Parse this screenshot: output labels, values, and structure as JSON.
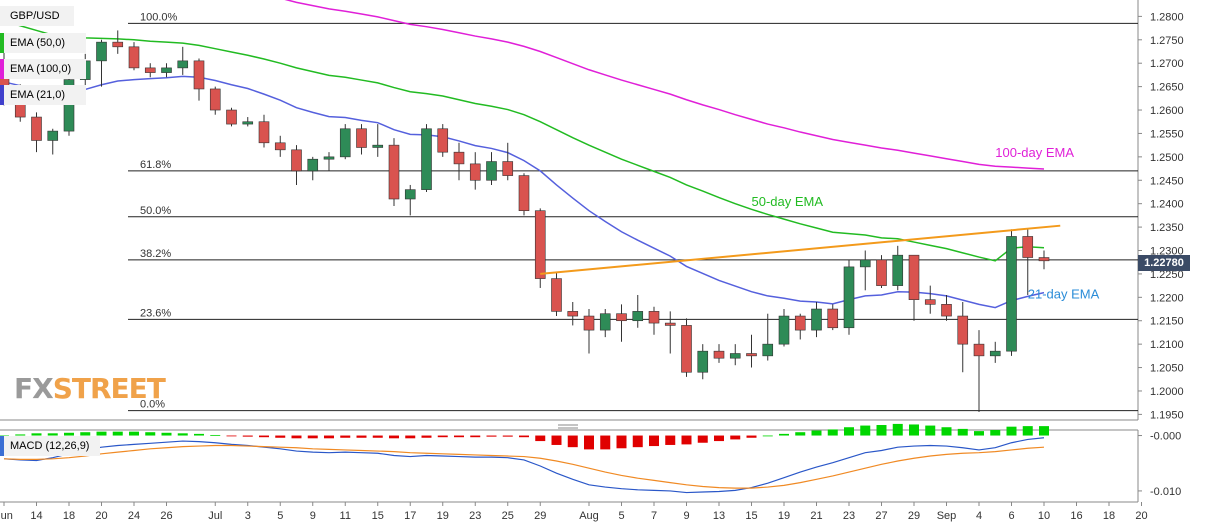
{
  "chart_data": {
    "type": "candlestick",
    "symbol": "GBP/USD",
    "current_price": "1.22780",
    "ylim": [
      1.1938,
      1.2835
    ],
    "y_ticks": [
      "1.2800",
      "1.2750",
      "1.2700",
      "1.2650",
      "1.2600",
      "1.2550",
      "1.2500",
      "1.2450",
      "1.2400",
      "1.2350",
      "1.2300",
      "1.2250",
      "1.2200",
      "1.2150",
      "1.2100",
      "1.2050",
      "1.2000",
      "1.1950"
    ],
    "x_ticks": [
      {
        "label": "Jun",
        "i": 0
      },
      {
        "label": "14",
        "i": 2
      },
      {
        "label": "18",
        "i": 4
      },
      {
        "label": "20",
        "i": 6
      },
      {
        "label": "24",
        "i": 8
      },
      {
        "label": "26",
        "i": 10
      },
      {
        "label": "Jul",
        "i": 13
      },
      {
        "label": "3",
        "i": 15
      },
      {
        "label": "5",
        "i": 17
      },
      {
        "label": "9",
        "i": 19
      },
      {
        "label": "11",
        "i": 21
      },
      {
        "label": "15",
        "i": 23
      },
      {
        "label": "17",
        "i": 25
      },
      {
        "label": "19",
        "i": 27
      },
      {
        "label": "23",
        "i": 29
      },
      {
        "label": "25",
        "i": 31
      },
      {
        "label": "29",
        "i": 33
      },
      {
        "label": "Aug",
        "i": 36
      },
      {
        "label": "5",
        "i": 38
      },
      {
        "label": "7",
        "i": 40
      },
      {
        "label": "9",
        "i": 42
      },
      {
        "label": "13",
        "i": 44
      },
      {
        "label": "15",
        "i": 46
      },
      {
        "label": "19",
        "i": 48
      },
      {
        "label": "21",
        "i": 50
      },
      {
        "label": "23",
        "i": 52
      },
      {
        "label": "27",
        "i": 54
      },
      {
        "label": "29",
        "i": 56
      },
      {
        "label": "Sep",
        "i": 58
      },
      {
        "label": "4",
        "i": 60
      },
      {
        "label": "6",
        "i": 62
      },
      {
        "label": "10",
        "i": 64
      },
      {
        "label": "16",
        "i": 66
      },
      {
        "label": "18",
        "i": 68
      },
      {
        "label": "20",
        "i": 70
      }
    ],
    "candles": [
      [
        1.2705,
        1.2745,
        1.261,
        1.262
      ],
      [
        1.262,
        1.2655,
        1.2575,
        1.2585
      ],
      [
        1.2585,
        1.2595,
        1.251,
        1.2535
      ],
      [
        1.2535,
        1.256,
        1.2505,
        1.2555
      ],
      [
        1.2555,
        1.268,
        1.2545,
        1.2665
      ],
      [
        1.2665,
        1.272,
        1.2645,
        1.2705
      ],
      [
        1.2705,
        1.275,
        1.265,
        1.2745
      ],
      [
        1.2745,
        1.277,
        1.272,
        1.2735
      ],
      [
        1.2735,
        1.2745,
        1.2685,
        1.269
      ],
      [
        1.269,
        1.27,
        1.267,
        1.268
      ],
      [
        1.268,
        1.27,
        1.267,
        1.269
      ],
      [
        1.269,
        1.2735,
        1.2675,
        1.2705
      ],
      [
        1.2705,
        1.271,
        1.262,
        1.2645
      ],
      [
        1.2645,
        1.265,
        1.259,
        1.26
      ],
      [
        1.26,
        1.2605,
        1.2565,
        1.257
      ],
      [
        1.257,
        1.2585,
        1.2565,
        1.2575
      ],
      [
        1.2575,
        1.259,
        1.252,
        1.253
      ],
      [
        1.253,
        1.2545,
        1.25,
        1.2515
      ],
      [
        1.2515,
        1.2525,
        1.244,
        1.247
      ],
      [
        1.247,
        1.25,
        1.245,
        1.2495
      ],
      [
        1.2495,
        1.251,
        1.247,
        1.25
      ],
      [
        1.25,
        1.257,
        1.2495,
        1.256
      ],
      [
        1.256,
        1.257,
        1.2505,
        1.252
      ],
      [
        1.252,
        1.257,
        1.25,
        1.2525
      ],
      [
        1.2525,
        1.254,
        1.2395,
        1.241
      ],
      [
        1.241,
        1.244,
        1.2375,
        1.243
      ],
      [
        1.243,
        1.257,
        1.2425,
        1.256
      ],
      [
        1.256,
        1.257,
        1.25,
        1.251
      ],
      [
        1.251,
        1.253,
        1.245,
        1.2485
      ],
      [
        1.2485,
        1.251,
        1.243,
        1.245
      ],
      [
        1.245,
        1.251,
        1.244,
        1.249
      ],
      [
        1.249,
        1.253,
        1.245,
        1.246
      ],
      [
        1.246,
        1.2465,
        1.2375,
        1.2385
      ],
      [
        1.2385,
        1.239,
        1.222,
        1.224
      ],
      [
        1.224,
        1.2255,
        1.216,
        1.217
      ],
      [
        1.217,
        1.219,
        1.214,
        1.216
      ],
      [
        1.216,
        1.2175,
        1.208,
        1.213
      ],
      [
        1.213,
        1.2175,
        1.2115,
        1.2165
      ],
      [
        1.2165,
        1.2185,
        1.2105,
        1.215
      ],
      [
        1.215,
        1.2205,
        1.2135,
        1.217
      ],
      [
        1.217,
        1.218,
        1.212,
        1.2145
      ],
      [
        1.2145,
        1.217,
        1.208,
        1.214
      ],
      [
        1.214,
        1.2155,
        1.203,
        1.204
      ],
      [
        1.204,
        1.21,
        1.2025,
        1.2085
      ],
      [
        1.2085,
        1.21,
        1.206,
        1.207
      ],
      [
        1.207,
        1.21,
        1.2055,
        1.208
      ],
      [
        1.208,
        1.212,
        1.205,
        1.2075
      ],
      [
        1.2075,
        1.2165,
        1.2065,
        1.21
      ],
      [
        1.21,
        1.2175,
        1.2095,
        1.216
      ],
      [
        1.216,
        1.2165,
        1.211,
        1.213
      ],
      [
        1.213,
        1.219,
        1.2115,
        1.2175
      ],
      [
        1.2175,
        1.2185,
        1.213,
        1.2135
      ],
      [
        1.2135,
        1.228,
        1.212,
        1.2265
      ],
      [
        1.2265,
        1.23,
        1.2215,
        1.228
      ],
      [
        1.228,
        1.229,
        1.222,
        1.2225
      ],
      [
        1.2225,
        1.231,
        1.2215,
        1.229
      ],
      [
        1.229,
        1.229,
        1.215,
        1.2195
      ],
      [
        1.2195,
        1.2225,
        1.2165,
        1.2185
      ],
      [
        1.2185,
        1.2205,
        1.215,
        1.216
      ],
      [
        1.216,
        1.219,
        1.204,
        1.21
      ],
      [
        1.21,
        1.213,
        1.1955,
        1.2075
      ],
      [
        1.2075,
        1.2105,
        1.206,
        1.2085
      ],
      [
        1.2085,
        1.2345,
        1.2075,
        1.233
      ],
      [
        1.233,
        1.2345,
        1.2205,
        1.2285
      ],
      [
        1.2285,
        1.23,
        1.226,
        1.2278
      ]
    ],
    "ema21": [
      1.266,
      1.2652,
      1.2642,
      1.2635,
      1.2637,
      1.2644,
      1.2654,
      1.2662,
      1.2665,
      1.2667,
      1.2669,
      1.2672,
      1.267,
      1.2663,
      1.2654,
      1.2646,
      1.2634,
      1.2621,
      1.2605,
      1.2595,
      1.2586,
      1.2584,
      1.2578,
      1.2573,
      1.2558,
      1.2548,
      1.2547,
      1.2543,
      1.2534,
      1.2524,
      1.2518,
      1.2509,
      1.2492,
      1.247,
      1.244,
      1.2412,
      1.2385,
      1.2362,
      1.234,
      1.2322,
      1.2305,
      1.2288,
      1.2266,
      1.2251,
      1.2236,
      1.2224,
      1.2212,
      1.2203,
      1.2198,
      1.2192,
      1.219,
      1.2186,
      1.2195,
      1.2203,
      1.2205,
      1.2212,
      1.2211,
      1.2208,
      1.2203,
      1.2194,
      1.2185,
      1.2178,
      1.2193,
      1.2202,
      1.221
    ],
    "ema50": [
      1.279,
      1.278,
      1.277,
      1.276,
      1.2756,
      1.2754,
      1.2753,
      1.2752,
      1.275,
      1.2747,
      1.2745,
      1.2743,
      1.2738,
      1.2731,
      1.2724,
      1.2717,
      1.2709,
      1.27,
      1.269,
      1.2682,
      1.2674,
      1.267,
      1.2664,
      1.2658,
      1.2648,
      1.2639,
      1.2635,
      1.263,
      1.2622,
      1.2614,
      1.2608,
      1.2601,
      1.259,
      1.2575,
      1.2558,
      1.2541,
      1.2525,
      1.251,
      1.2495,
      1.2482,
      1.2469,
      1.2456,
      1.244,
      1.2427,
      1.2413,
      1.24,
      1.2388,
      1.2377,
      1.2367,
      1.2357,
      1.2348,
      1.2339,
      1.2336,
      1.2333,
      1.2327,
      1.2325,
      1.2318,
      1.2311,
      1.2304,
      1.2295,
      1.2286,
      1.2278,
      1.2305,
      1.2308,
      1.2306
    ],
    "ema100": [
      1.294,
      1.293,
      1.292,
      1.2912,
      1.2906,
      1.2901,
      1.2896,
      1.2893,
      1.2889,
      1.2885,
      1.2881,
      1.2877,
      1.2872,
      1.2866,
      1.286,
      1.2853,
      1.2846,
      1.2839,
      1.283,
      1.2823,
      1.2816,
      1.2811,
      1.2805,
      1.2799,
      1.2791,
      1.2783,
      1.2778,
      1.2772,
      1.2765,
      1.2758,
      1.2752,
      1.2745,
      1.2736,
      1.2725,
      1.2712,
      1.2699,
      1.2686,
      1.2675,
      1.2664,
      1.2654,
      1.2644,
      1.2634,
      1.2622,
      1.2611,
      1.2601,
      1.259,
      1.258,
      1.257,
      1.2562,
      1.2553,
      1.2545,
      1.2537,
      1.2531,
      1.2525,
      1.2519,
      1.2514,
      1.2508,
      1.2502,
      1.2496,
      1.249,
      1.2484,
      1.248,
      1.2478,
      1.2476,
      1.2474
    ],
    "fibonacci": [
      {
        "label": "100.0%",
        "value": 1.2785
      },
      {
        "label": "61.8%",
        "value": 1.247
      },
      {
        "label": "50.0%",
        "value": 1.2372
      },
      {
        "label": "38.2%",
        "value": 1.228
      },
      {
        "label": "23.6%",
        "value": 1.2153
      },
      {
        "label": "0.0%",
        "value": 1.1958
      }
    ],
    "trendline": {
      "from": {
        "i": 33,
        "value": 1.225
      },
      "to": {
        "i": 65,
        "value": 1.2353
      },
      "color": "#f39a1b"
    },
    "annotations": [
      {
        "text": "100-day EMA",
        "color": "#e020d8",
        "i": 61,
        "value": 1.25
      },
      {
        "text": "50-day EMA",
        "color": "#22bb22",
        "i": 46,
        "value": 1.2395
      },
      {
        "text": "21-day EMA",
        "color": "#2a8cd8",
        "i": 63,
        "value": 1.2197
      }
    ],
    "legend": [
      {
        "text": "GBP/USD",
        "color": ""
      },
      {
        "text": "EMA (50,0)",
        "color": "#22bb22"
      },
      {
        "text": "EMA (100,0)",
        "color": "#e020d8"
      },
      {
        "text": "EMA (21,0)",
        "color": "#4040cc"
      }
    ],
    "macd": {
      "label": "MACD (12,26,9)",
      "ylim": [
        -0.012,
        0.001
      ],
      "y_ticks": [
        "-0.000",
        "-0.010"
      ],
      "histogram": [
        0.0,
        0.0002,
        0.0004,
        0.0004,
        0.0005,
        0.0006,
        0.0007,
        0.0007,
        0.0007,
        0.0006,
        0.0005,
        0.0004,
        0.0003,
        0.0001,
        -0.0001,
        -0.0002,
        -0.0003,
        -0.0004,
        -0.0005,
        -0.0005,
        -0.0005,
        -0.0004,
        -0.0004,
        -0.0004,
        -0.0005,
        -0.0005,
        -0.0004,
        -0.0003,
        -0.0003,
        -0.0003,
        -0.0002,
        -0.0002,
        -0.0003,
        -0.001,
        -0.0017,
        -0.0021,
        -0.0025,
        -0.0025,
        -0.0023,
        -0.0021,
        -0.0019,
        -0.0017,
        -0.0016,
        -0.0013,
        -0.001,
        -0.0007,
        -0.0004,
        0.0,
        0.0003,
        0.0006,
        0.0009,
        0.0011,
        0.0015,
        0.0018,
        0.0019,
        0.0021,
        0.002,
        0.0018,
        0.0015,
        0.0012,
        0.0008,
        0.001,
        0.0016,
        0.0017,
        0.0017
      ],
      "macd_line": [
        -0.0042,
        -0.0044,
        -0.0045,
        -0.004,
        -0.0033,
        -0.0026,
        -0.0021,
        -0.0018,
        -0.0016,
        -0.0014,
        -0.0012,
        -0.001,
        -0.0011,
        -0.0013,
        -0.0016,
        -0.0018,
        -0.0021,
        -0.0024,
        -0.0028,
        -0.003,
        -0.0031,
        -0.003,
        -0.0031,
        -0.0032,
        -0.0036,
        -0.0038,
        -0.0036,
        -0.0037,
        -0.0038,
        -0.0039,
        -0.0039,
        -0.004,
        -0.0044,
        -0.0055,
        -0.0068,
        -0.0079,
        -0.0089,
        -0.0093,
        -0.0096,
        -0.0098,
        -0.0099,
        -0.01,
        -0.0103,
        -0.0102,
        -0.0101,
        -0.0099,
        -0.0094,
        -0.0086,
        -0.0076,
        -0.0066,
        -0.0057,
        -0.0049,
        -0.004,
        -0.0031,
        -0.0027,
        -0.0021,
        -0.0019,
        -0.0018,
        -0.0019,
        -0.0022,
        -0.0026,
        -0.0022,
        -0.0013,
        -0.0007,
        -0.0004
      ],
      "signal_line": [
        -0.0042,
        -0.0043,
        -0.0043,
        -0.0042,
        -0.004,
        -0.0037,
        -0.0033,
        -0.003,
        -0.0027,
        -0.0024,
        -0.0022,
        -0.002,
        -0.0019,
        -0.0018,
        -0.0018,
        -0.0019,
        -0.002,
        -0.0021,
        -0.0022,
        -0.0024,
        -0.0025,
        -0.0026,
        -0.0027,
        -0.0028,
        -0.0029,
        -0.0031,
        -0.0032,
        -0.0033,
        -0.0034,
        -0.0035,
        -0.0036,
        -0.0037,
        -0.0038,
        -0.0041,
        -0.0046,
        -0.0052,
        -0.0059,
        -0.0066,
        -0.0072,
        -0.0077,
        -0.0081,
        -0.0085,
        -0.0089,
        -0.0092,
        -0.0094,
        -0.0095,
        -0.0095,
        -0.0093,
        -0.009,
        -0.0085,
        -0.0079,
        -0.0073,
        -0.0066,
        -0.0059,
        -0.0052,
        -0.0046,
        -0.0041,
        -0.0037,
        -0.0034,
        -0.0032,
        -0.0031,
        -0.0029,
        -0.0026,
        -0.0023,
        -0.0021
      ]
    }
  },
  "watermark": {
    "part1": "FX",
    "part2": "STREET"
  }
}
